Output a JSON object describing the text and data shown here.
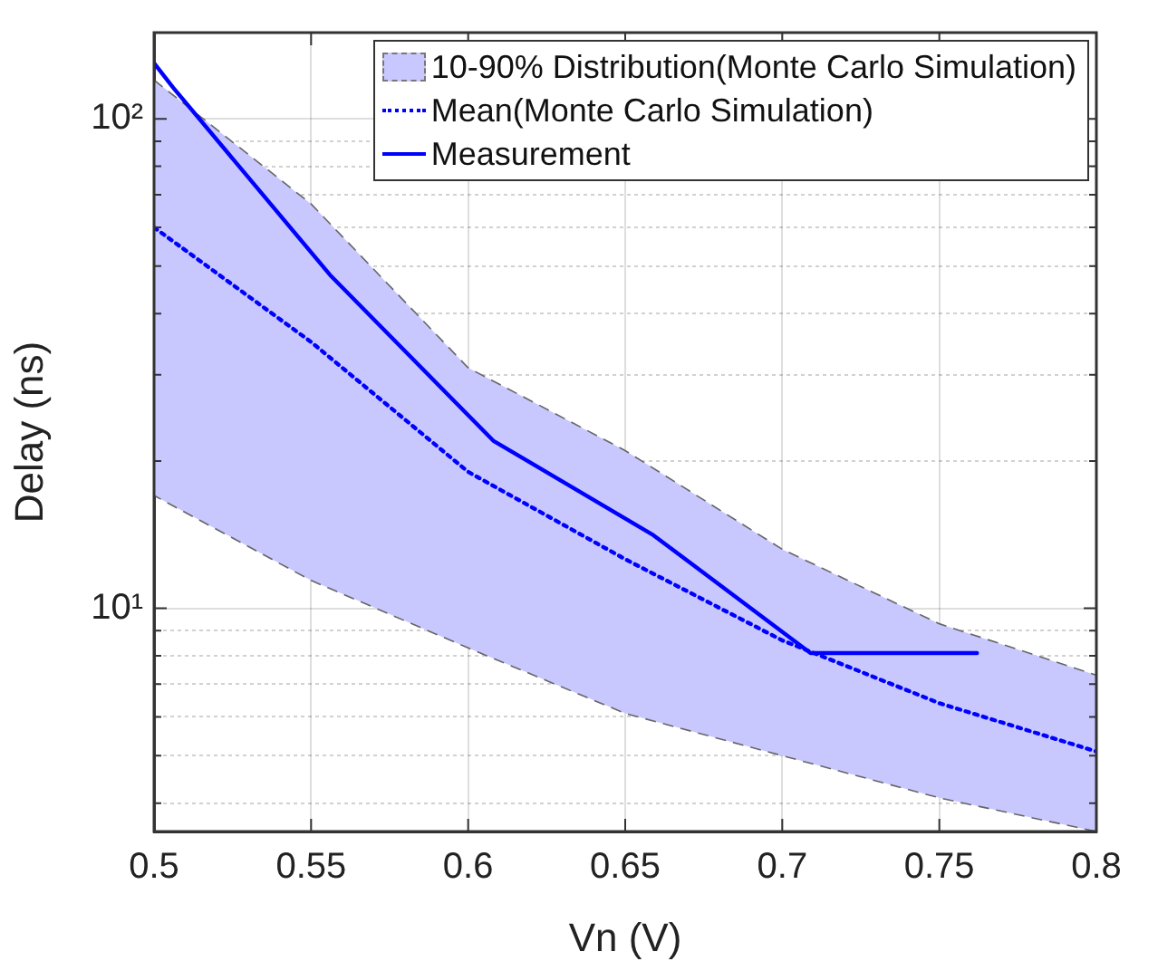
{
  "chart_data": {
    "type": "line",
    "xlabel": "Vn (V)",
    "ylabel": "Delay (ns)",
    "log": "y",
    "grid": true,
    "legend": "top right",
    "xlim": [
      0.5,
      0.8
    ],
    "xticks": [
      0.5,
      0.55,
      0.6,
      0.65,
      0.7,
      0.75,
      0.8
    ],
    "ylim": [
      3.5,
      150
    ],
    "yticks": [
      {
        "value": 4,
        "label": null
      },
      {
        "value": 5,
        "label": null
      },
      {
        "value": 6,
        "label": null
      },
      {
        "value": 7,
        "label": null
      },
      {
        "value": 8,
        "label": null
      },
      {
        "value": 9,
        "label": null
      },
      {
        "value": 10,
        "label": "10¹"
      },
      {
        "value": 20,
        "label": null
      },
      {
        "value": 30,
        "label": null
      },
      {
        "value": 40,
        "label": null
      },
      {
        "value": 50,
        "label": null
      },
      {
        "value": 60,
        "label": null
      },
      {
        "value": 70,
        "label": null
      },
      {
        "value": 80,
        "label": null
      },
      {
        "value": 90,
        "label": null
      },
      {
        "value": 100,
        "label": "10²"
      }
    ],
    "series": [
      {
        "name": "10-90% Distribution(Monte Carlo Simulation)",
        "type": "area",
        "color": "#c8c8ff",
        "line_style": "dashed",
        "x": [
          0.5,
          0.55,
          0.6,
          0.65,
          0.7,
          0.75,
          0.8
        ],
        "values": [
          null,
          null,
          null,
          null,
          null,
          null,
          null
        ],
        "lower": [
          17,
          11.4,
          8.3,
          6.1,
          5,
          4.1,
          3.5
        ],
        "upper": [
          120,
          67,
          31,
          21,
          13.2,
          9.3,
          7.3
        ]
      },
      {
        "name": "Mean(Monte Carlo Simulation)",
        "color": "#0000ff",
        "line_style": "dotted",
        "x": [
          0.5,
          0.55,
          0.6,
          0.65,
          0.7,
          0.75,
          0.8
        ],
        "values": [
          60,
          35,
          19,
          12.6,
          8.6,
          6.4,
          5.1
        ]
      },
      {
        "name": "Measurement",
        "color": "#0000ff",
        "line_style": "solid",
        "x": [
          0.5,
          0.506,
          0.556,
          0.608,
          0.659,
          0.709,
          0.762
        ],
        "values": [
          130,
          116,
          48,
          22,
          14.1,
          8.1,
          8.1
        ]
      }
    ]
  }
}
